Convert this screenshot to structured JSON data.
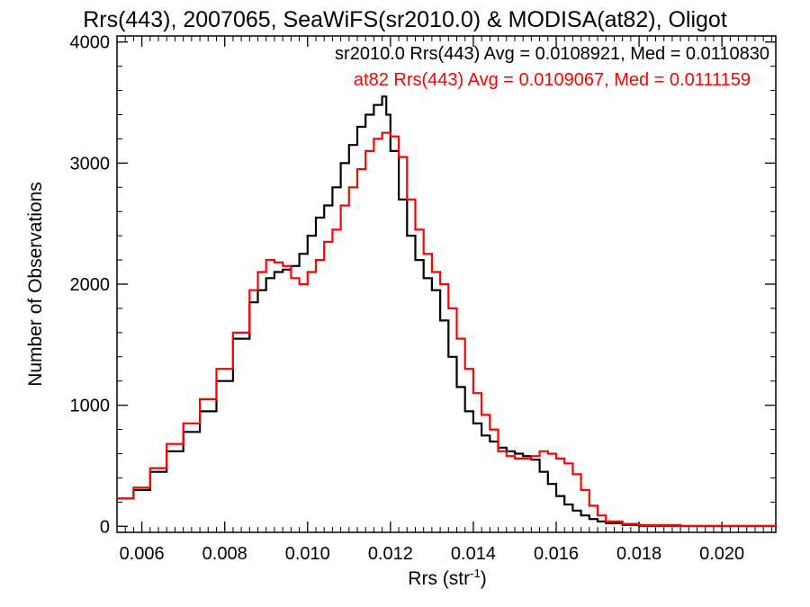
{
  "chart_data": {
    "type": "line",
    "step": true,
    "title": "Rrs(443), 2007065, SeaWiFS(sr2010.0) & MODISA(at82), Oligot",
    "xlabel": "Rrs (str",
    "xlabel_sup": "-1",
    "xlabel_end": ")",
    "ylabel": "Number of Observations",
    "xlim": [
      0.0054,
      0.0213
    ],
    "ylim": [
      -50,
      4050
    ],
    "xticks": [
      0.006,
      0.008,
      0.01,
      0.012,
      0.014,
      0.016,
      0.018,
      0.02
    ],
    "xtick_labels": [
      "0.006",
      "0.008",
      "0.010",
      "0.012",
      "0.014",
      "0.016",
      "0.018",
      "0.020"
    ],
    "yticks": [
      0,
      1000,
      2000,
      3000,
      4000
    ],
    "ytick_labels": [
      "0",
      "1000",
      "2000",
      "3000",
      "4000"
    ],
    "legend_position": "top-right",
    "series": [
      {
        "name": "sr2010.0 Rrs(443) Avg = 0.0108921, Med = 0.0110830",
        "color": "#000000",
        "x": [
          0.0054,
          0.0058,
          0.0062,
          0.0066,
          0.007,
          0.0074,
          0.0078,
          0.0082,
          0.0086,
          0.0088,
          0.009,
          0.0092,
          0.0094,
          0.0096,
          0.0098,
          0.01,
          0.0102,
          0.0104,
          0.0106,
          0.0108,
          0.011,
          0.0112,
          0.0114,
          0.0116,
          0.0118,
          0.0119,
          0.012,
          0.0122,
          0.0124,
          0.0126,
          0.0128,
          0.013,
          0.0132,
          0.0134,
          0.0136,
          0.0138,
          0.014,
          0.0142,
          0.0144,
          0.0146,
          0.0148,
          0.015,
          0.0152,
          0.0154,
          0.0156,
          0.0158,
          0.016,
          0.0162,
          0.0164,
          0.0166,
          0.0168,
          0.017,
          0.0172,
          0.0176,
          0.018,
          0.019,
          0.0213
        ],
        "y": [
          230,
          300,
          450,
          620,
          780,
          950,
          1200,
          1550,
          1850,
          1950,
          2050,
          2100,
          2120,
          2150,
          2250,
          2400,
          2550,
          2650,
          2800,
          3000,
          3150,
          3300,
          3400,
          3480,
          3550,
          3400,
          3100,
          2700,
          2400,
          2200,
          2050,
          1950,
          1700,
          1400,
          1150,
          950,
          850,
          750,
          700,
          650,
          620,
          600,
          580,
          550,
          450,
          350,
          250,
          180,
          130,
          90,
          60,
          40,
          25,
          12,
          5,
          2,
          0
        ]
      },
      {
        "name": "at82 Rrs(443) Avg = 0.0109067, Med = 0.0111159",
        "color": "#ff0000",
        "x": [
          0.0054,
          0.0058,
          0.0062,
          0.0066,
          0.007,
          0.0074,
          0.0078,
          0.0082,
          0.0086,
          0.0088,
          0.009,
          0.0092,
          0.0094,
          0.0096,
          0.0098,
          0.01,
          0.0102,
          0.0104,
          0.0106,
          0.0108,
          0.011,
          0.0112,
          0.0114,
          0.0116,
          0.0118,
          0.012,
          0.0122,
          0.0124,
          0.0126,
          0.0128,
          0.013,
          0.0132,
          0.0134,
          0.0136,
          0.0138,
          0.014,
          0.0142,
          0.0144,
          0.0146,
          0.0148,
          0.015,
          0.0152,
          0.0154,
          0.0156,
          0.0158,
          0.016,
          0.0162,
          0.0164,
          0.0166,
          0.0168,
          0.017,
          0.0172,
          0.0176,
          0.018,
          0.019,
          0.0213
        ],
        "y": [
          230,
          320,
          480,
          680,
          850,
          1050,
          1300,
          1600,
          1950,
          2100,
          2200,
          2180,
          2150,
          2050,
          2000,
          2100,
          2200,
          2350,
          2450,
          2650,
          2800,
          2950,
          3100,
          3200,
          3250,
          3220,
          3050,
          2700,
          2450,
          2250,
          2100,
          2000,
          1800,
          1550,
          1300,
          1100,
          920,
          800,
          620,
          580,
          560,
          560,
          580,
          620,
          600,
          560,
          520,
          430,
          300,
          170,
          90,
          40,
          20,
          10,
          3,
          0
        ]
      }
    ]
  }
}
